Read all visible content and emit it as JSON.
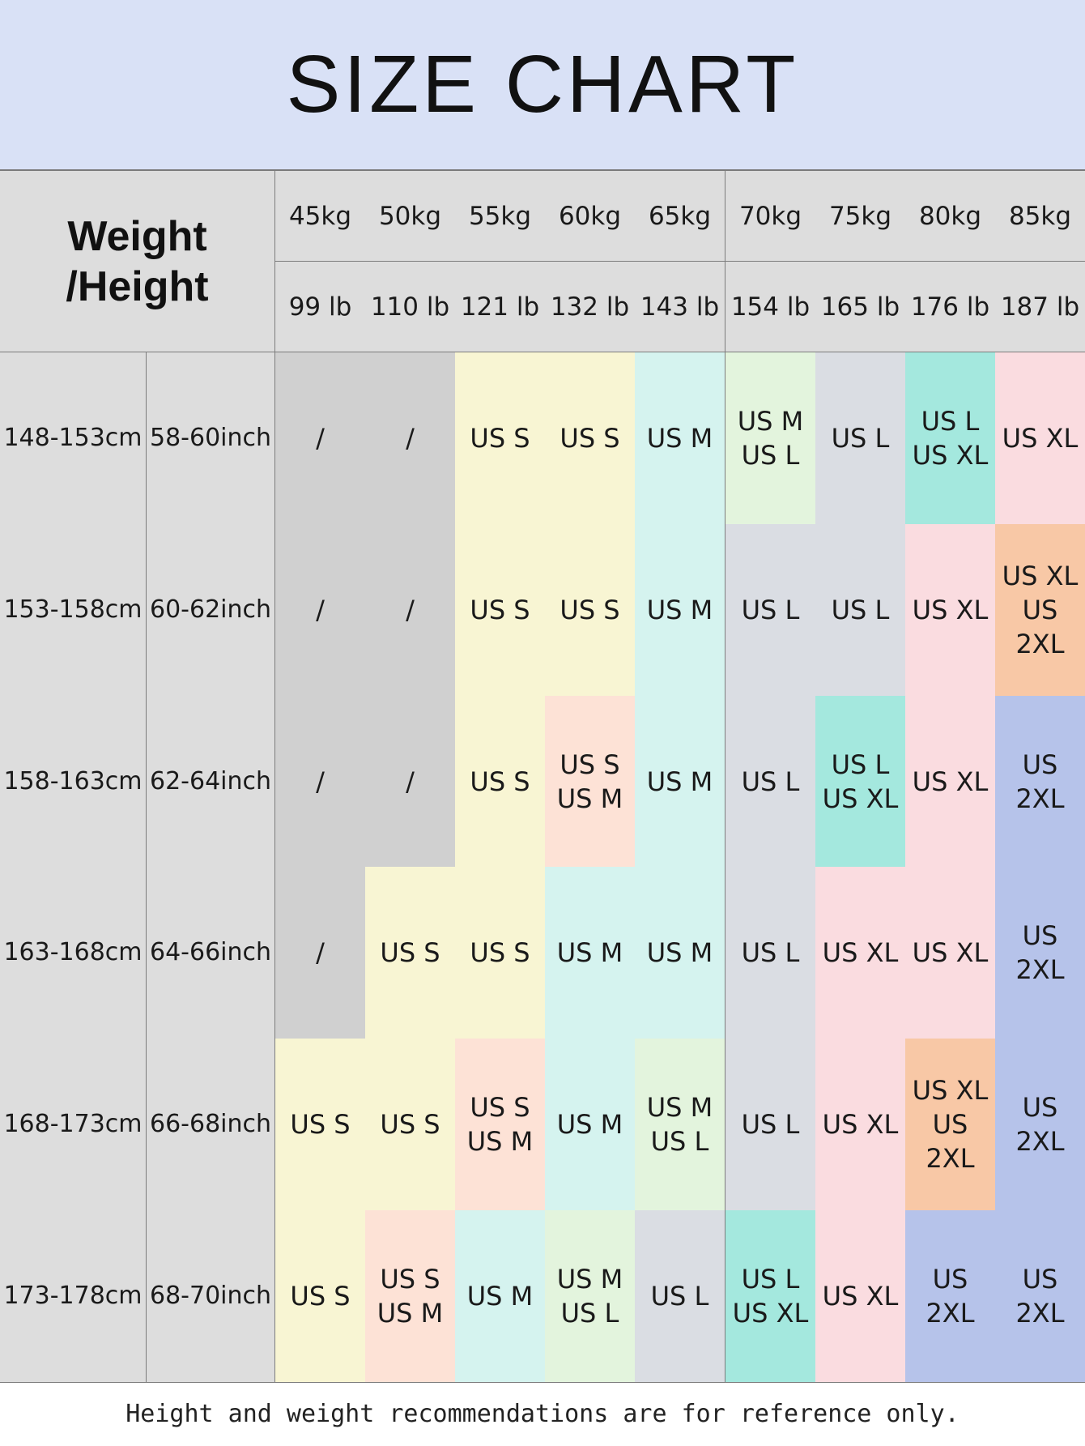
{
  "title": "SIZE CHART",
  "header_label": "Weight\n/Height",
  "kg": [
    "45kg",
    "50kg",
    "55kg",
    "60kg",
    "65kg",
    "70kg",
    "75kg",
    "80kg",
    "85kg"
  ],
  "lb": [
    "99 lb",
    "110 lb",
    "121 lb",
    "132 lb",
    "143 lb",
    "154 lb",
    "165 lb",
    "176 lb",
    "187 lb"
  ],
  "rows": [
    {
      "cm": "148-153cm",
      "inch": "58-60inch",
      "sizes": [
        "/",
        "/",
        "US S",
        "US S",
        "US M",
        "US M\nUS L",
        "US L",
        "US L\nUS XL",
        "US XL"
      ]
    },
    {
      "cm": "153-158cm",
      "inch": "60-62inch",
      "sizes": [
        "/",
        "/",
        "US S",
        "US S",
        "US M",
        "US L",
        "US L",
        "US XL",
        "US XL\nUS 2XL"
      ]
    },
    {
      "cm": "158-163cm",
      "inch": "62-64inch",
      "sizes": [
        "/",
        "/",
        "US S",
        "US S\nUS M",
        "US M",
        "US L",
        "US L\nUS XL",
        "US XL",
        "US 2XL"
      ]
    },
    {
      "cm": "163-168cm",
      "inch": "64-66inch",
      "sizes": [
        "/",
        "US S",
        "US S",
        "US M",
        "US M",
        "US L",
        "US XL",
        "US XL",
        "US 2XL"
      ]
    },
    {
      "cm": "168-173cm",
      "inch": "66-68inch",
      "sizes": [
        "US S",
        "US S",
        "US S\nUS M",
        "US M",
        "US M\nUS L",
        "US L",
        "US XL",
        "US XL\nUS 2XL",
        "US 2XL"
      ]
    },
    {
      "cm": "173-178cm",
      "inch": "68-70inch",
      "sizes": [
        "US S",
        "US S\nUS M",
        "US M",
        "US M\nUS L",
        "US L",
        "US L\nUS XL",
        "US XL",
        "US 2XL",
        "US 2XL"
      ]
    }
  ],
  "colors": {
    "/": "#d0d0d0",
    "US S": "#f8f5d3",
    "US S\nUS M": "#fde2d6",
    "US M": "#d5f3ef",
    "US M\nUS L": "#e3f4dd",
    "US L": "#dadde3",
    "US L\nUS XL": "#a4e8de",
    "US XL": "#fadce0",
    "US XL\nUS 2XL": "#f8c8a6",
    "US 2XL": "#b6c3ea"
  },
  "note": "Height and weight recommendations are for reference only.",
  "chart_data": {
    "type": "table",
    "title": "SIZE CHART",
    "columns_kg": [
      "45kg",
      "50kg",
      "55kg",
      "60kg",
      "65kg",
      "70kg",
      "75kg",
      "80kg",
      "85kg"
    ],
    "columns_lb": [
      "99 lb",
      "110 lb",
      "121 lb",
      "132 lb",
      "143 lb",
      "154 lb",
      "165 lb",
      "176 lb",
      "187 lb"
    ],
    "row_labels_cm": [
      "148-153cm",
      "153-158cm",
      "158-163cm",
      "163-168cm",
      "168-173cm",
      "173-178cm"
    ],
    "row_labels_inch": [
      "58-60inch",
      "60-62inch",
      "62-64inch",
      "64-66inch",
      "66-68inch",
      "68-70inch"
    ]
  }
}
